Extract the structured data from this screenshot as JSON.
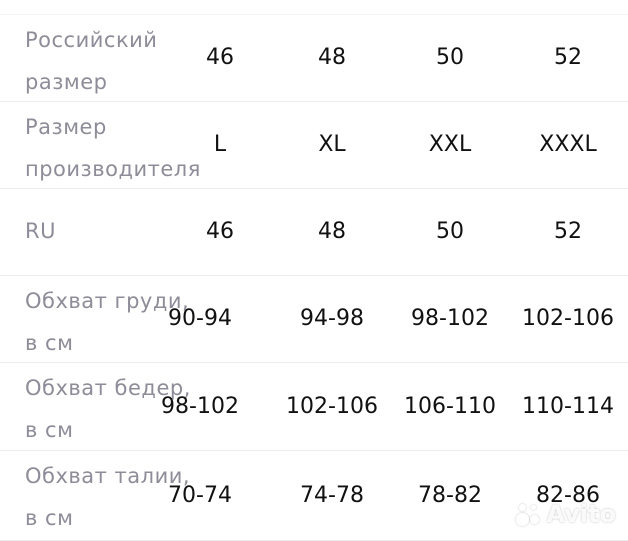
{
  "table": {
    "rows": [
      {
        "label": "Российский размер",
        "values": [
          "46",
          "48",
          "50",
          "52"
        ]
      },
      {
        "label": "Размер производителя",
        "values": [
          "L",
          "XL",
          "XXL",
          "XXXL"
        ]
      },
      {
        "label": "RU",
        "values": [
          "46",
          "48",
          "50",
          "52"
        ]
      },
      {
        "label": "Обхват груди, в см",
        "values": [
          "90-94",
          "94-98",
          "98-102",
          "102-106"
        ]
      },
      {
        "label": "Обхват бедер, в см",
        "values": [
          "98-102",
          "102-106",
          "106-110",
          "110-114"
        ]
      },
      {
        "label": "Обхват талии, в см",
        "values": [
          "70-74",
          "74-78",
          "78-82",
          "82-86"
        ]
      }
    ]
  },
  "watermark": {
    "text": "Avito"
  }
}
